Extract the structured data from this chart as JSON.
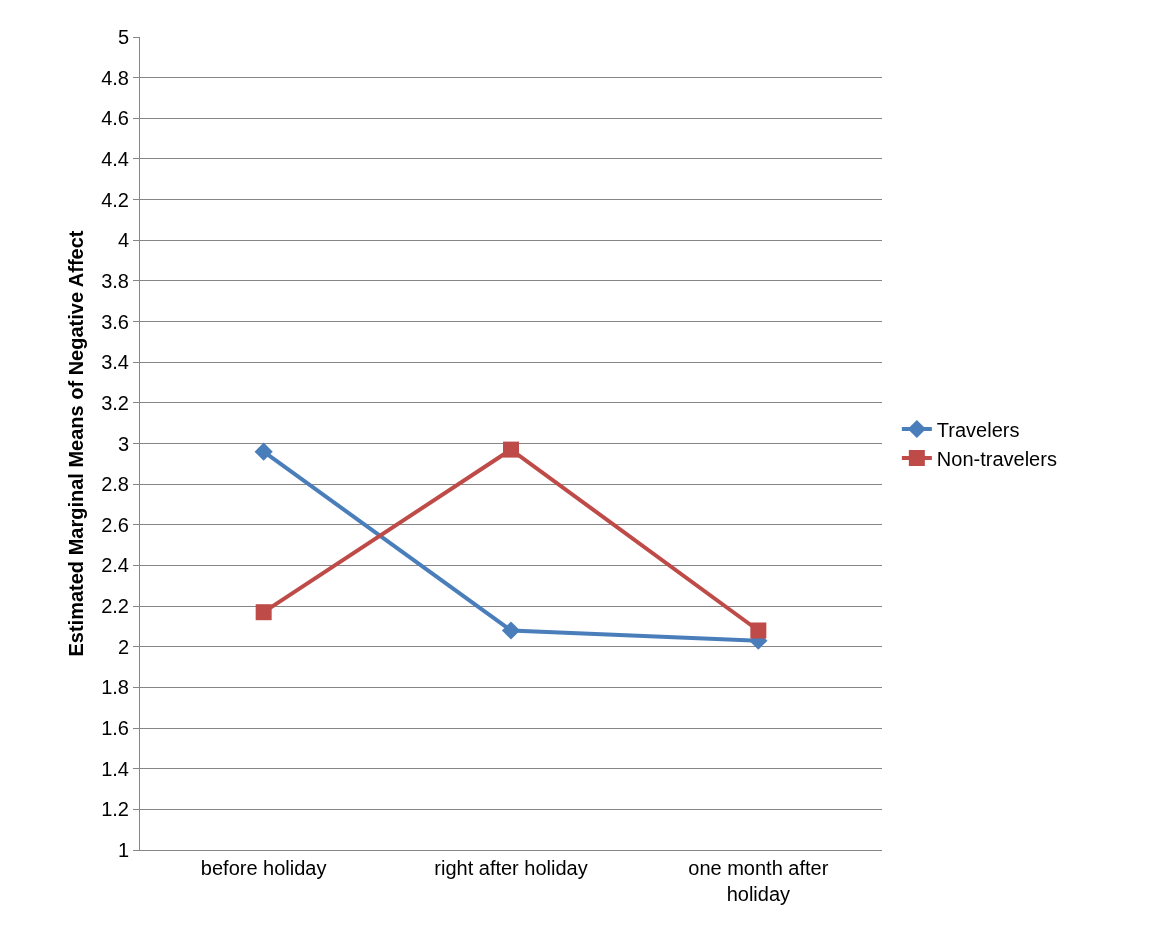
{
  "chart_data": {
    "type": "line",
    "ylabel": "Estimated Marginal Means of Negative Affect",
    "categories": [
      "before holiday",
      "right after holiday",
      "one month after holiday"
    ],
    "series": [
      {
        "name": "Travelers",
        "color": "#4a7ebb",
        "marker": "diamond",
        "values": [
          2.96,
          2.08,
          2.03
        ]
      },
      {
        "name": "Non-travelers",
        "color": "#be4b48",
        "marker": "square",
        "values": [
          2.17,
          2.97,
          2.08
        ]
      }
    ],
    "ylim": [
      1,
      5
    ],
    "yticks": [
      1,
      1.2,
      1.4,
      1.6,
      1.8,
      2,
      2.2,
      2.4,
      2.6,
      2.8,
      3,
      3.2,
      3.4,
      3.6,
      3.8,
      4,
      4.2,
      4.4,
      4.6,
      4.8,
      5
    ],
    "grid": "y",
    "legend": "right",
    "line_style": "solid"
  }
}
